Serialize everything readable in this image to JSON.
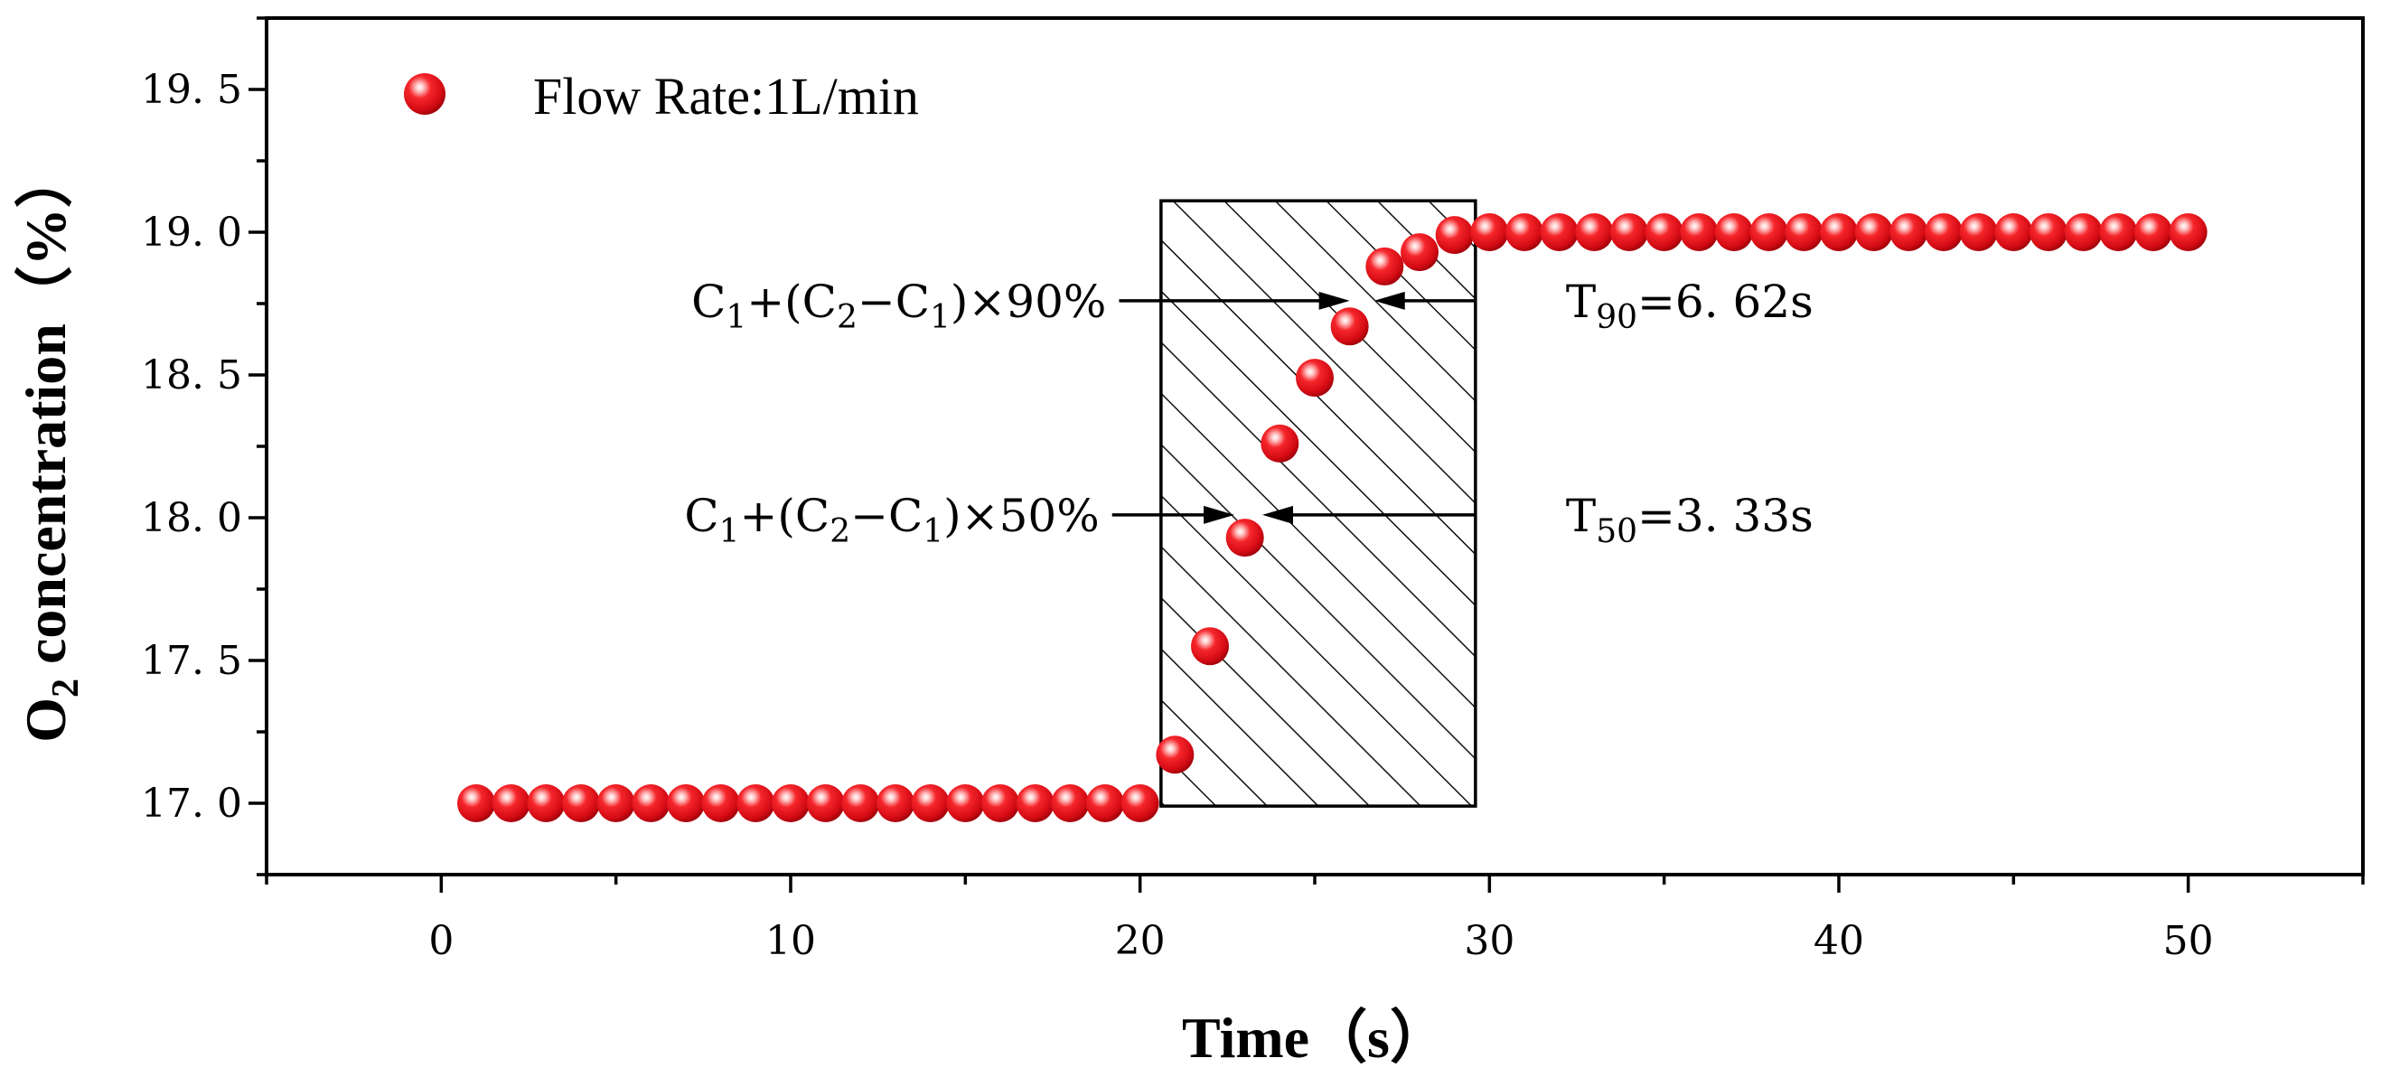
{
  "chart_data": {
    "type": "scatter",
    "title": "",
    "xlabel": "Time（s）",
    "ylabel_main": "O",
    "ylabel_sub": "2",
    "ylabel_rest": " concentration（%）",
    "xlim": [
      -5,
      55
    ],
    "ylim": [
      16.75,
      19.75
    ],
    "xticks": [
      0,
      10,
      20,
      30,
      40,
      50
    ],
    "yticks": [
      17.0,
      17.5,
      18.0,
      18.5,
      19.0,
      19.5
    ],
    "ytick_labels": [
      "17. 0",
      "17. 5",
      "18. 0",
      "18. 5",
      "19. 0",
      "19. 5"
    ],
    "grid": false,
    "legend_position": "top-left",
    "series": [
      {
        "name": "Flow Rate:1L/min",
        "color": "#e8111b",
        "x": [
          1,
          2,
          3,
          4,
          5,
          6,
          7,
          8,
          9,
          10,
          11,
          12,
          13,
          14,
          15,
          16,
          17,
          18,
          19,
          20,
          21,
          22,
          23,
          24,
          25,
          26,
          27,
          28,
          29,
          30,
          31,
          32,
          33,
          34,
          35,
          36,
          37,
          38,
          39,
          40,
          41,
          42,
          43,
          44,
          45,
          46,
          47,
          48,
          49,
          50
        ],
        "y": [
          17.0,
          17.0,
          17.0,
          17.0,
          17.0,
          17.0,
          17.0,
          17.0,
          17.0,
          17.0,
          17.0,
          17.0,
          17.0,
          17.0,
          17.0,
          17.0,
          17.0,
          17.0,
          17.0,
          17.0,
          17.17,
          17.55,
          17.93,
          18.26,
          18.49,
          18.67,
          18.88,
          18.93,
          18.99,
          19.0,
          19.0,
          19.0,
          19.0,
          19.0,
          19.0,
          19.0,
          19.0,
          19.0,
          19.0,
          19.0,
          19.0,
          19.0,
          19.0,
          19.0,
          19.0,
          19.0,
          19.0,
          19.0,
          19.0,
          19.0
        ]
      }
    ],
    "shaded_region": {
      "x0": 20.6,
      "x1": 29.6,
      "y0": 16.99,
      "y1": 19.11,
      "fill": "diagonal hatch"
    },
    "annotations": [
      {
        "y": 18.76,
        "left_text": {
          "c1": "C",
          "s1": "1",
          "op": "+(C",
          "s2": "2",
          "minus": "−C",
          "s3": "1",
          "tail": ")×90%"
        },
        "right_text": {
          "t": "T",
          "sub": "90",
          "val": "=6. 62s"
        },
        "left_arrow_x": [
          19.4,
          26.0
        ],
        "right_arrow_x": [
          29.6,
          26.7
        ]
      },
      {
        "y": 18.01,
        "left_text": {
          "c1": "C",
          "s1": "1",
          "op": "+(C",
          "s2": "2",
          "minus": "−C",
          "s3": "1",
          "tail": ")×50%"
        },
        "right_text": {
          "t": "T",
          "sub": "50",
          "val": "=3. 33s"
        },
        "left_arrow_x": [
          19.2,
          22.7
        ],
        "right_arrow_x": [
          29.6,
          23.5
        ]
      }
    ]
  }
}
